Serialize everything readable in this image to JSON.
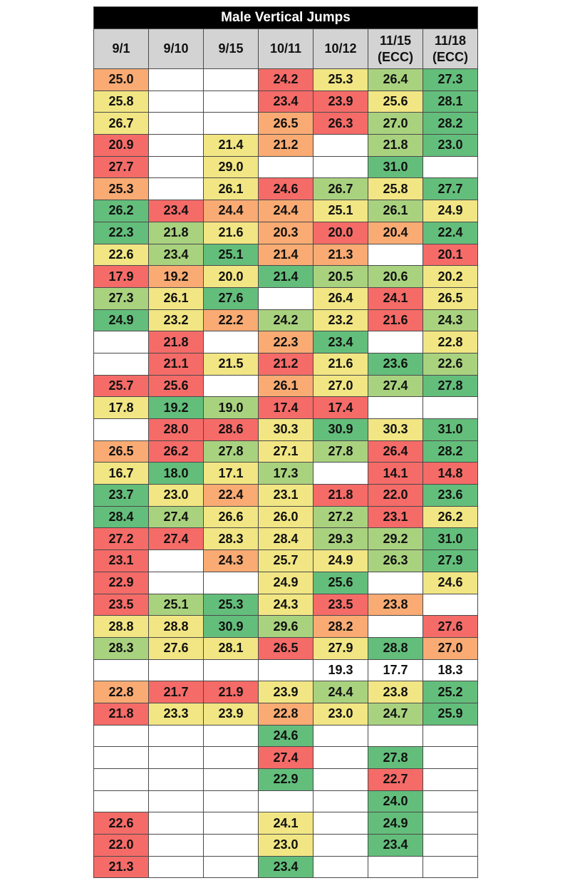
{
  "chart_data": {
    "type": "heatmap",
    "title": "Male Vertical Jumps",
    "columns": [
      "9/1",
      "9/10",
      "9/15",
      "10/11",
      "10/12",
      "11/15 (ECC)",
      "11/18 (ECC)"
    ],
    "colors": {
      "5": "#63be7b",
      "4": "#a9d27f",
      "3": "#f1e683",
      "2": "#f9ab73",
      "1": "#f56b68",
      "0": "#ffffff",
      "header": "#d3d3d3",
      "title_bg": "#000000"
    },
    "rows": [
      {
        "values": [
          "25.0",
          "",
          "",
          "24.2",
          "25.3",
          "26.4",
          "27.3"
        ],
        "levels": [
          2,
          0,
          0,
          1,
          3,
          4,
          5
        ]
      },
      {
        "values": [
          "25.8",
          "",
          "",
          "23.4",
          "23.9",
          "25.6",
          "28.1"
        ],
        "levels": [
          3,
          0,
          0,
          1,
          1,
          3,
          5
        ]
      },
      {
        "values": [
          "26.7",
          "",
          "",
          "26.5",
          "26.3",
          "27.0",
          "28.2"
        ],
        "levels": [
          3,
          0,
          0,
          2,
          1,
          4,
          5
        ]
      },
      {
        "values": [
          "20.9",
          "",
          "21.4",
          "21.2",
          "",
          "21.8",
          "23.0"
        ],
        "levels": [
          1,
          0,
          3,
          2,
          0,
          4,
          5
        ]
      },
      {
        "values": [
          "27.7",
          "",
          "29.0",
          "",
          "",
          "31.0",
          ""
        ],
        "levels": [
          1,
          0,
          3,
          0,
          0,
          5,
          0
        ]
      },
      {
        "values": [
          "25.3",
          "",
          "26.1",
          "24.6",
          "26.7",
          "25.8",
          "27.7"
        ],
        "levels": [
          2,
          0,
          3,
          1,
          4,
          3,
          5
        ]
      },
      {
        "values": [
          "26.2",
          "23.4",
          "24.4",
          "24.4",
          "25.1",
          "26.1",
          "24.9"
        ],
        "levels": [
          5,
          1,
          2,
          2,
          3,
          4,
          3
        ]
      },
      {
        "values": [
          "22.3",
          "21.8",
          "21.6",
          "20.3",
          "20.0",
          "20.4",
          "22.4"
        ],
        "levels": [
          5,
          4,
          3,
          2,
          1,
          2,
          5
        ]
      },
      {
        "values": [
          "22.6",
          "23.4",
          "25.1",
          "21.4",
          "21.3",
          "",
          "20.1"
        ],
        "levels": [
          3,
          4,
          5,
          2,
          2,
          0,
          1
        ]
      },
      {
        "values": [
          "17.9",
          "19.2",
          "20.0",
          "21.4",
          "20.5",
          "20.6",
          "20.2"
        ],
        "levels": [
          1,
          2,
          3,
          5,
          4,
          4,
          3
        ]
      },
      {
        "values": [
          "27.3",
          "26.1",
          "27.6",
          "",
          "26.4",
          "24.1",
          "26.5"
        ],
        "levels": [
          4,
          3,
          5,
          0,
          3,
          1,
          3
        ]
      },
      {
        "values": [
          "24.9",
          "23.2",
          "22.2",
          "24.2",
          "23.2",
          "21.6",
          "24.3"
        ],
        "levels": [
          5,
          3,
          2,
          4,
          3,
          1,
          4
        ]
      },
      {
        "values": [
          "",
          "21.8",
          "",
          "22.3",
          "23.4",
          "",
          "22.8"
        ],
        "levels": [
          0,
          1,
          0,
          2,
          5,
          0,
          3
        ]
      },
      {
        "values": [
          "",
          "21.1",
          "21.5",
          "21.2",
          "21.6",
          "23.6",
          "22.6"
        ],
        "levels": [
          0,
          1,
          3,
          1,
          3,
          5,
          4
        ]
      },
      {
        "values": [
          "25.7",
          "25.6",
          "",
          "26.1",
          "27.0",
          "27.4",
          "27.8"
        ],
        "levels": [
          1,
          1,
          0,
          2,
          3,
          4,
          5
        ]
      },
      {
        "values": [
          "17.8",
          "19.2",
          "19.0",
          "17.4",
          "17.4",
          "",
          ""
        ],
        "levels": [
          3,
          5,
          4,
          1,
          1,
          0,
          0
        ]
      },
      {
        "values": [
          "",
          "28.0",
          "28.6",
          "30.3",
          "30.9",
          "30.3",
          "31.0"
        ],
        "levels": [
          0,
          1,
          1,
          3,
          5,
          3,
          5
        ]
      },
      {
        "values": [
          "26.5",
          "26.2",
          "27.8",
          "27.1",
          "27.8",
          "26.4",
          "28.2"
        ],
        "levels": [
          2,
          1,
          4,
          3,
          4,
          1,
          5
        ]
      },
      {
        "values": [
          "16.7",
          "18.0",
          "17.1",
          "17.3",
          "",
          "14.1",
          "14.8"
        ],
        "levels": [
          3,
          5,
          3,
          4,
          0,
          1,
          1
        ]
      },
      {
        "values": [
          "23.7",
          "23.0",
          "22.4",
          "23.1",
          "21.8",
          "22.0",
          "23.6"
        ],
        "levels": [
          5,
          3,
          2,
          3,
          1,
          1,
          5
        ]
      },
      {
        "values": [
          "28.4",
          "27.4",
          "26.6",
          "26.0",
          "27.2",
          "23.1",
          "26.2"
        ],
        "levels": [
          5,
          4,
          3,
          3,
          4,
          1,
          3
        ]
      },
      {
        "values": [
          "27.2",
          "27.4",
          "28.3",
          "28.4",
          "29.3",
          "29.2",
          "31.0"
        ],
        "levels": [
          1,
          1,
          3,
          3,
          4,
          4,
          5
        ]
      },
      {
        "values": [
          "23.1",
          "",
          "24.3",
          "25.7",
          "24.9",
          "26.3",
          "27.9"
        ],
        "levels": [
          1,
          0,
          2,
          3,
          3,
          4,
          5
        ]
      },
      {
        "values": [
          "22.9",
          "",
          "",
          "24.9",
          "25.6",
          "",
          "24.6"
        ],
        "levels": [
          1,
          0,
          0,
          3,
          5,
          0,
          3
        ]
      },
      {
        "values": [
          "23.5",
          "25.1",
          "25.3",
          "24.3",
          "23.5",
          "23.8",
          ""
        ],
        "levels": [
          1,
          4,
          5,
          3,
          1,
          2,
          0
        ]
      },
      {
        "values": [
          "28.8",
          "28.8",
          "30.9",
          "29.6",
          "28.2",
          "",
          "27.6"
        ],
        "levels": [
          3,
          3,
          5,
          4,
          2,
          0,
          1
        ]
      },
      {
        "values": [
          "28.3",
          "27.6",
          "28.1",
          "26.5",
          "27.9",
          "28.8",
          "27.0"
        ],
        "levels": [
          4,
          3,
          3,
          1,
          3,
          5,
          2
        ]
      },
      {
        "values": [
          "",
          "",
          "",
          "",
          "19.3",
          "17.7",
          "18.3"
        ],
        "levels": [
          0,
          0,
          0,
          0,
          0,
          0,
          0
        ]
      },
      {
        "values": [
          "22.8",
          "21.7",
          "21.9",
          "23.9",
          "24.4",
          "23.8",
          "25.2"
        ],
        "levels": [
          2,
          1,
          1,
          3,
          4,
          3,
          5
        ]
      },
      {
        "values": [
          "21.8",
          "23.3",
          "23.9",
          "22.8",
          "23.0",
          "24.7",
          "25.9"
        ],
        "levels": [
          1,
          3,
          3,
          2,
          3,
          4,
          5
        ]
      },
      {
        "values": [
          "",
          "",
          "",
          "24.6",
          "",
          "",
          ""
        ],
        "levels": [
          0,
          0,
          0,
          5,
          0,
          0,
          0
        ]
      },
      {
        "values": [
          "",
          "",
          "",
          "27.4",
          "",
          "27.8",
          ""
        ],
        "levels": [
          0,
          0,
          0,
          1,
          0,
          5,
          0
        ]
      },
      {
        "values": [
          "",
          "",
          "",
          "22.9",
          "",
          "22.7",
          ""
        ],
        "levels": [
          0,
          0,
          0,
          5,
          0,
          1,
          0
        ]
      },
      {
        "values": [
          "",
          "",
          "",
          "",
          "",
          "24.0",
          ""
        ],
        "levels": [
          0,
          0,
          0,
          0,
          0,
          5,
          0
        ]
      },
      {
        "values": [
          "22.6",
          "",
          "",
          "24.1",
          "",
          "24.9",
          ""
        ],
        "levels": [
          1,
          0,
          0,
          3,
          0,
          5,
          0
        ]
      },
      {
        "values": [
          "22.0",
          "",
          "",
          "23.0",
          "",
          "23.4",
          ""
        ],
        "levels": [
          1,
          0,
          0,
          3,
          0,
          5,
          0
        ]
      },
      {
        "values": [
          "21.3",
          "",
          "",
          "23.4",
          "",
          "",
          ""
        ],
        "levels": [
          1,
          0,
          0,
          5,
          0,
          0,
          0
        ]
      }
    ]
  }
}
